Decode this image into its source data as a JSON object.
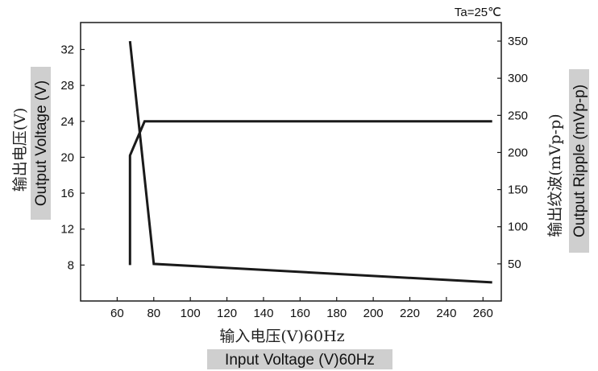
{
  "chart_data": {
    "type": "line",
    "annotation": "Ta=25℃",
    "xlabel_cn": "输入电压(V)60Hz",
    "xlabel_en": "Input Voltage (V)60Hz",
    "ylabel_left_cn": "输出电压(V)",
    "ylabel_left_en": "Output Voltage (V)",
    "ylabel_right_cn": "输出纹波(mVp-p)",
    "ylabel_right_en": "Output Ripple (mVp-p)",
    "xlim": [
      40,
      270
    ],
    "ylim_left": [
      4,
      35
    ],
    "ylim_right": [
      0,
      375
    ],
    "xticks": [
      60,
      80,
      100,
      120,
      140,
      160,
      180,
      200,
      220,
      240,
      260
    ],
    "yticks_left": [
      8,
      12,
      16,
      20,
      24,
      28,
      32
    ],
    "yticks_right": [
      50,
      100,
      150,
      200,
      250,
      300,
      350
    ],
    "grid": false,
    "series": [
      {
        "axis": "left",
        "x": [
          67,
          67,
          75,
          265
        ],
        "y": [
          8,
          20.2,
          24,
          24
        ]
      },
      {
        "axis": "right",
        "x": [
          67,
          80,
          265
        ],
        "y": [
          350,
          50,
          25
        ]
      }
    ],
    "color": "#1a1a1a"
  }
}
